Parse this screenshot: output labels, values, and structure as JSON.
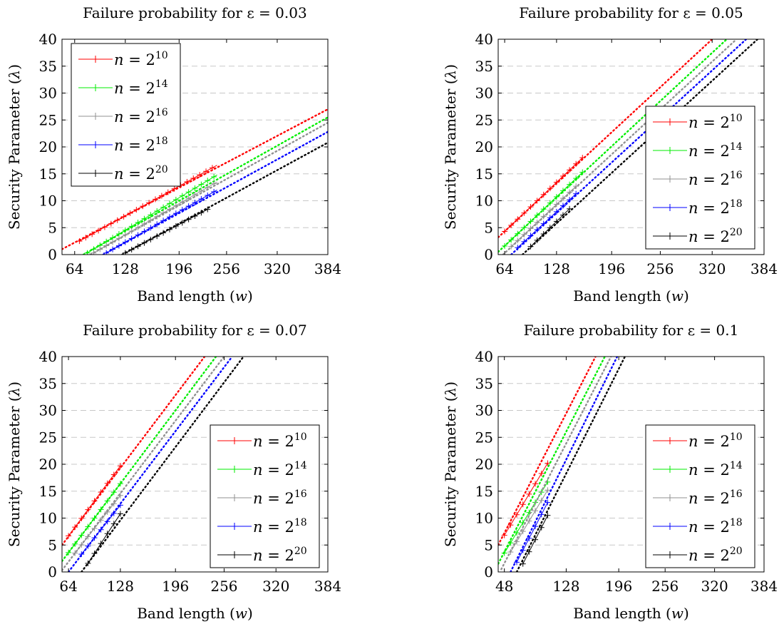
{
  "chart_data": [
    {
      "type": "line",
      "title": "Failure probability for ε = 0.03",
      "xlabel": "Band length (w)",
      "ylabel": "Security Parameter (λ)",
      "xlim": [
        48,
        384
      ],
      "ylim": [
        0,
        40
      ],
      "x_ticks": [
        "64",
        "128",
        "196",
        "256",
        "320",
        "384"
      ],
      "y_ticks": [
        "0",
        "5",
        "10",
        "15",
        "20",
        "25",
        "30",
        "35",
        "40"
      ],
      "grid": "horizontal dashed",
      "legend_position": "top-left",
      "series": [
        {
          "name": "n = 2^10",
          "color": "#ff0000",
          "marked": [
            [
              70,
              2.5
            ],
            [
              244,
              16.6
            ]
          ],
          "dotted": [
            [
              48,
              1.0
            ],
            [
              384,
              27.0
            ]
          ]
        },
        {
          "name": "n = 2^14",
          "color": "#00ee00",
          "marked": [
            [
              80,
              0.3
            ],
            [
              244,
              14.8
            ]
          ],
          "dotted": [
            [
              75,
              0
            ],
            [
              384,
              25.5
            ]
          ]
        },
        {
          "name": "n = 2^16",
          "color": "#909090",
          "marked": [
            [
              88,
              0.3
            ],
            [
              244,
              13.5
            ]
          ],
          "dotted": [
            [
              84,
              0
            ],
            [
              384,
              24.5
            ]
          ]
        },
        {
          "name": "n = 2^18",
          "color": "#0000ff",
          "marked": [
            [
              104,
              0.3
            ],
            [
              244,
              12.0
            ]
          ],
          "dotted": [
            [
              100,
              0
            ],
            [
              384,
              22.8
            ]
          ]
        },
        {
          "name": "n = 2^20",
          "color": "#000000",
          "marked": [
            [
              128,
              0.3
            ],
            [
              232,
              8.4
            ]
          ],
          "dotted": [
            [
              124,
              0
            ],
            [
              384,
              20.8
            ]
          ]
        }
      ]
    },
    {
      "type": "line",
      "title": "Failure probability for ε = 0.05",
      "xlabel": "Band length (w)",
      "ylabel": "Security Parameter (λ)",
      "xlim": [
        56,
        384
      ],
      "ylim": [
        0,
        40
      ],
      "x_ticks": [
        "64",
        "128",
        "196",
        "256",
        "320",
        "384"
      ],
      "y_ticks": [
        "0",
        "5",
        "10",
        "15",
        "20",
        "25",
        "30",
        "35",
        "40"
      ],
      "grid": "horizontal dashed",
      "legend_position": "bottom-right",
      "series": [
        {
          "name": "n = 2^10",
          "color": "#ff0000",
          "marked": [
            [
              64,
              4.3
            ],
            [
              160,
              18.0
            ]
          ],
          "dotted": [
            [
              56,
              3.2
            ],
            [
              320,
              40
            ]
          ]
        },
        {
          "name": "n = 2^14",
          "color": "#00ee00",
          "marked": [
            [
              64,
              1.6
            ],
            [
              160,
              15.3
            ]
          ],
          "dotted": [
            [
              56,
              0.5
            ],
            [
              338,
              40
            ]
          ]
        },
        {
          "name": "n = 2^16",
          "color": "#909090",
          "marked": [
            [
              72,
              1.5
            ],
            [
              152,
              12.7
            ]
          ],
          "dotted": [
            [
              62,
              0
            ],
            [
              350,
              40
            ]
          ]
        },
        {
          "name": "n = 2^18",
          "color": "#0000ff",
          "marked": [
            [
              80,
              1.3
            ],
            [
              152,
              11.3
            ]
          ],
          "dotted": [
            [
              72,
              0
            ],
            [
              362,
              40
            ]
          ]
        },
        {
          "name": "n = 2^20",
          "color": "#000000",
          "marked": [
            [
              96,
              1.5
            ],
            [
              144,
              8.5
            ]
          ],
          "dotted": [
            [
              86,
              0
            ],
            [
              376,
              40
            ]
          ]
        }
      ]
    },
    {
      "type": "line",
      "title": "Failure probability for ε = 0.07",
      "xlabel": "Band length (w)",
      "ylabel": "Security Parameter (λ)",
      "xlim": [
        56,
        384
      ],
      "ylim": [
        0,
        40
      ],
      "x_ticks": [
        "64",
        "128",
        "196",
        "256",
        "320",
        "384"
      ],
      "y_ticks": [
        "0",
        "5",
        "10",
        "15",
        "20",
        "25",
        "30",
        "35",
        "40"
      ],
      "grid": "horizontal dashed",
      "legend_position": "bottom-right",
      "series": [
        {
          "name": "n = 2^10",
          "color": "#ff0000",
          "marked": [
            [
              64,
              6.7
            ],
            [
              128,
              19.7
            ]
          ],
          "dotted": [
            [
              56,
              5.0
            ],
            [
              232,
              40
            ]
          ]
        },
        {
          "name": "n = 2^14",
          "color": "#00ee00",
          "marked": [
            [
              64,
              3.6
            ],
            [
              128,
              16.4
            ]
          ],
          "dotted": [
            [
              56,
              2.0
            ],
            [
              246,
              40
            ]
          ]
        },
        {
          "name": "n = 2^16",
          "color": "#909090",
          "marked": [
            [
              72,
              3.5
            ],
            [
              128,
              14.2
            ]
          ],
          "dotted": [
            [
              56,
              0.3
            ],
            [
              256,
              40
            ]
          ]
        },
        {
          "name": "n = 2^18",
          "color": "#0000ff",
          "marked": [
            [
              80,
              3.3
            ],
            [
              128,
              12.4
            ]
          ],
          "dotted": [
            [
              64,
              0
            ],
            [
              266,
              40
            ]
          ]
        },
        {
          "name": "n = 2^20",
          "color": "#000000",
          "marked": [
            [
              88,
              1.6
            ],
            [
              128,
              10.8
            ]
          ],
          "dotted": [
            [
              80,
              0
            ],
            [
              280,
              40
            ]
          ]
        }
      ]
    },
    {
      "type": "line",
      "title": "Failure probability for ε = 0.1",
      "xlabel": "Band length (w)",
      "ylabel": "Security Parameter (λ)",
      "xlim": [
        40,
        384
      ],
      "ylim": [
        0,
        40
      ],
      "x_ticks": [
        "48",
        "128",
        "196",
        "256",
        "320",
        "384"
      ],
      "y_ticks": [
        "0",
        "5",
        "10",
        "15",
        "20",
        "25",
        "30",
        "35",
        "40"
      ],
      "grid": "horizontal dashed",
      "legend_position": "bottom-right",
      "series": [
        {
          "name": "n = 2^10",
          "color": "#ff0000",
          "marked": [
            [
              48,
              6.8
            ],
            [
              104,
              20.2
            ]
          ],
          "dotted": [
            [
              40,
              5.0
            ],
            [
              166,
              40
            ]
          ]
        },
        {
          "name": "n = 2^14",
          "color": "#00ee00",
          "marked": [
            [
              48,
              3.5
            ],
            [
              104,
              16.7
            ]
          ],
          "dotted": [
            [
              40,
              1.5
            ],
            [
              178,
              40
            ]
          ]
        },
        {
          "name": "n = 2^16",
          "color": "#909090",
          "marked": [
            [
              56,
              3.7
            ],
            [
              104,
              15.2
            ]
          ],
          "dotted": [
            [
              44,
              0.5
            ],
            [
              186,
              40
            ]
          ]
        },
        {
          "name": "n = 2^18",
          "color": "#0000ff",
          "marked": [
            [
              64,
              1.8
            ],
            [
              104,
              12.9
            ]
          ],
          "dotted": [
            [
              56,
              0
            ],
            [
              194,
              40
            ]
          ]
        },
        {
          "name": "n = 2^20",
          "color": "#000000",
          "marked": [
            [
              72,
              1.5
            ],
            [
              104,
              10.5
            ]
          ],
          "dotted": [
            [
              64,
              0
            ],
            [
              204,
              40
            ]
          ]
        }
      ]
    }
  ]
}
